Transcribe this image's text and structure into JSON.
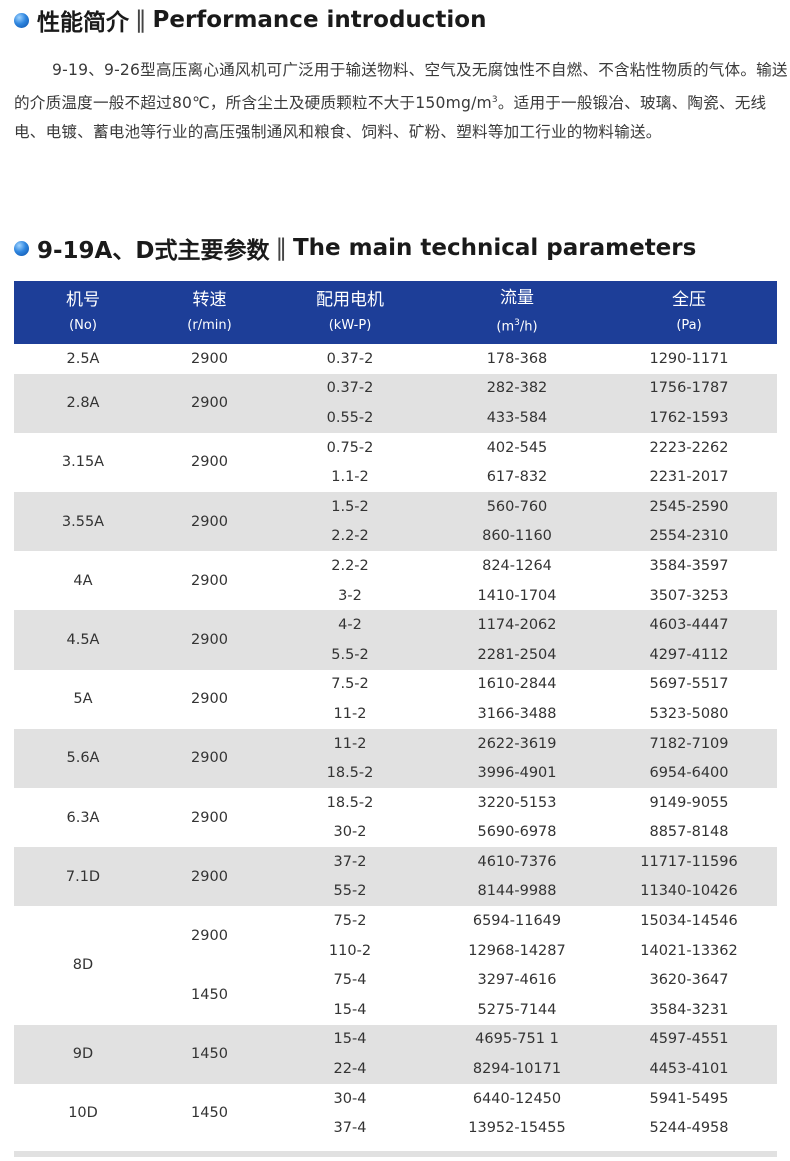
{
  "section1": {
    "title_zh": "性能简介",
    "separator": "‖",
    "title_en": "Performance introduction"
  },
  "intro": {
    "text_before_sup": "9-19、9-26型高压离心通风机可广泛用于输送物料、空气及无腐蚀性不自燃、不含粘性物质的气体。输送的介质温度一般不超过80℃，所含尘土及硬质颗粒不大于150mg/m",
    "sup": "3",
    "text_after_sup": "。适用于一般锻冶、玻璃、陶瓷、无线电、电镀、蓄电池等行业的高压强制通风和粮食、饲料、矿粉、塑料等加工行业的物料输送。"
  },
  "section2": {
    "title_zh": "9-19A、D式主要参数",
    "separator": "‖",
    "title_en": "The main technical parameters"
  },
  "table": {
    "headers": [
      {
        "zh": "机号",
        "en": "(No)"
      },
      {
        "zh": "转速",
        "en": "(r/min)"
      },
      {
        "zh": "配用电机",
        "en": "(kW-P)"
      },
      {
        "zh": "流量",
        "en_pre": "(m",
        "en_sup": "3",
        "en_post": "/h)"
      },
      {
        "zh": "全压",
        "en": "(Pa)"
      }
    ],
    "rows": [
      {
        "no": "2.5A",
        "speed": "2900",
        "motor": "0.37-2",
        "flow": "178-368",
        "pressure": "1290-1171"
      },
      {
        "no": "2.8A",
        "speed": "2900",
        "motor": "0.37-2",
        "flow": "282-382",
        "pressure": "1756-1787"
      },
      {
        "motor": "0.55-2",
        "flow": "433-584",
        "pressure": "1762-1593"
      },
      {
        "no": "3.15A",
        "speed": "2900",
        "motor": "0.75-2",
        "flow": "402-545",
        "pressure": "2223-2262"
      },
      {
        "motor": "1.1-2",
        "flow": "617-832",
        "pressure": "2231-2017"
      },
      {
        "no": "3.55A",
        "speed": "2900",
        "motor": "1.5-2",
        "flow": "560-760",
        "pressure": "2545-2590"
      },
      {
        "motor": "2.2-2",
        "flow": "860-1160",
        "pressure": "2554-2310"
      },
      {
        "no": "4A",
        "speed": "2900",
        "motor": "2.2-2",
        "flow": "824-1264",
        "pressure": "3584-3597"
      },
      {
        "motor": "3-2",
        "flow": "1410-1704",
        "pressure": "3507-3253"
      },
      {
        "no": "4.5A",
        "speed": "2900",
        "motor": "4-2",
        "flow": "1174-2062",
        "pressure": "4603-4447"
      },
      {
        "motor": "5.5-2",
        "flow": "2281-2504",
        "pressure": "4297-4112"
      },
      {
        "no": "5A",
        "speed": "2900",
        "motor": "7.5-2",
        "flow": "1610-2844",
        "pressure": "5697-5517"
      },
      {
        "motor": "11-2",
        "flow": "3166-3488",
        "pressure": "5323-5080"
      },
      {
        "no": "5.6A",
        "speed": "2900",
        "motor": "11-2",
        "flow": "2622-3619",
        "pressure": "7182-7109"
      },
      {
        "motor": "18.5-2",
        "flow": "3996-4901",
        "pressure": "6954-6400"
      },
      {
        "no": "6.3A",
        "speed": "2900",
        "motor": "18.5-2",
        "flow": "3220-5153",
        "pressure": "9149-9055"
      },
      {
        "motor": "30-2",
        "flow": "5690-6978",
        "pressure": "8857-8148"
      },
      {
        "no": "7.1D",
        "speed": "2900",
        "motor": "37-2",
        "flow": "4610-7376",
        "pressure": "11717-11596"
      },
      {
        "motor": "55-2",
        "flow": "8144-9988",
        "pressure": "11340-10426"
      },
      {
        "no": "8D",
        "speed": "2900",
        "motor": "75-2",
        "flow": "6594-11649",
        "pressure": "15034-14546"
      },
      {
        "motor": "110-2",
        "flow": "12968-14287",
        "pressure": "14021-13362"
      },
      {
        "speed": "1450",
        "motor": "75-4",
        "flow": "3297-4616",
        "pressure": "3620-3647"
      },
      {
        "motor": "15-4",
        "flow": "5275-7144",
        "pressure": "3584-3231"
      },
      {
        "no": "9D",
        "speed": "1450",
        "motor": "15-4",
        "flow": "4695-751 1",
        "pressure": "4597-4551"
      },
      {
        "motor": "22-4",
        "flow": "8294-10171",
        "pressure": "4453-4101"
      },
      {
        "no": "10D",
        "speed": "1450",
        "motor": "30-4",
        "flow": "6440-12450",
        "pressure": "5941-5495"
      },
      {
        "motor": "37-4",
        "flow": "13952-15455",
        "pressure": "5244-4958"
      }
    ]
  },
  "colors": {
    "header_bg": "#1d3e98",
    "stripe_gray": "#e1e1e1",
    "bullet_blue": "#2f86df"
  },
  "icons": {
    "bullet": "blue-sphere-bullet-icon"
  }
}
